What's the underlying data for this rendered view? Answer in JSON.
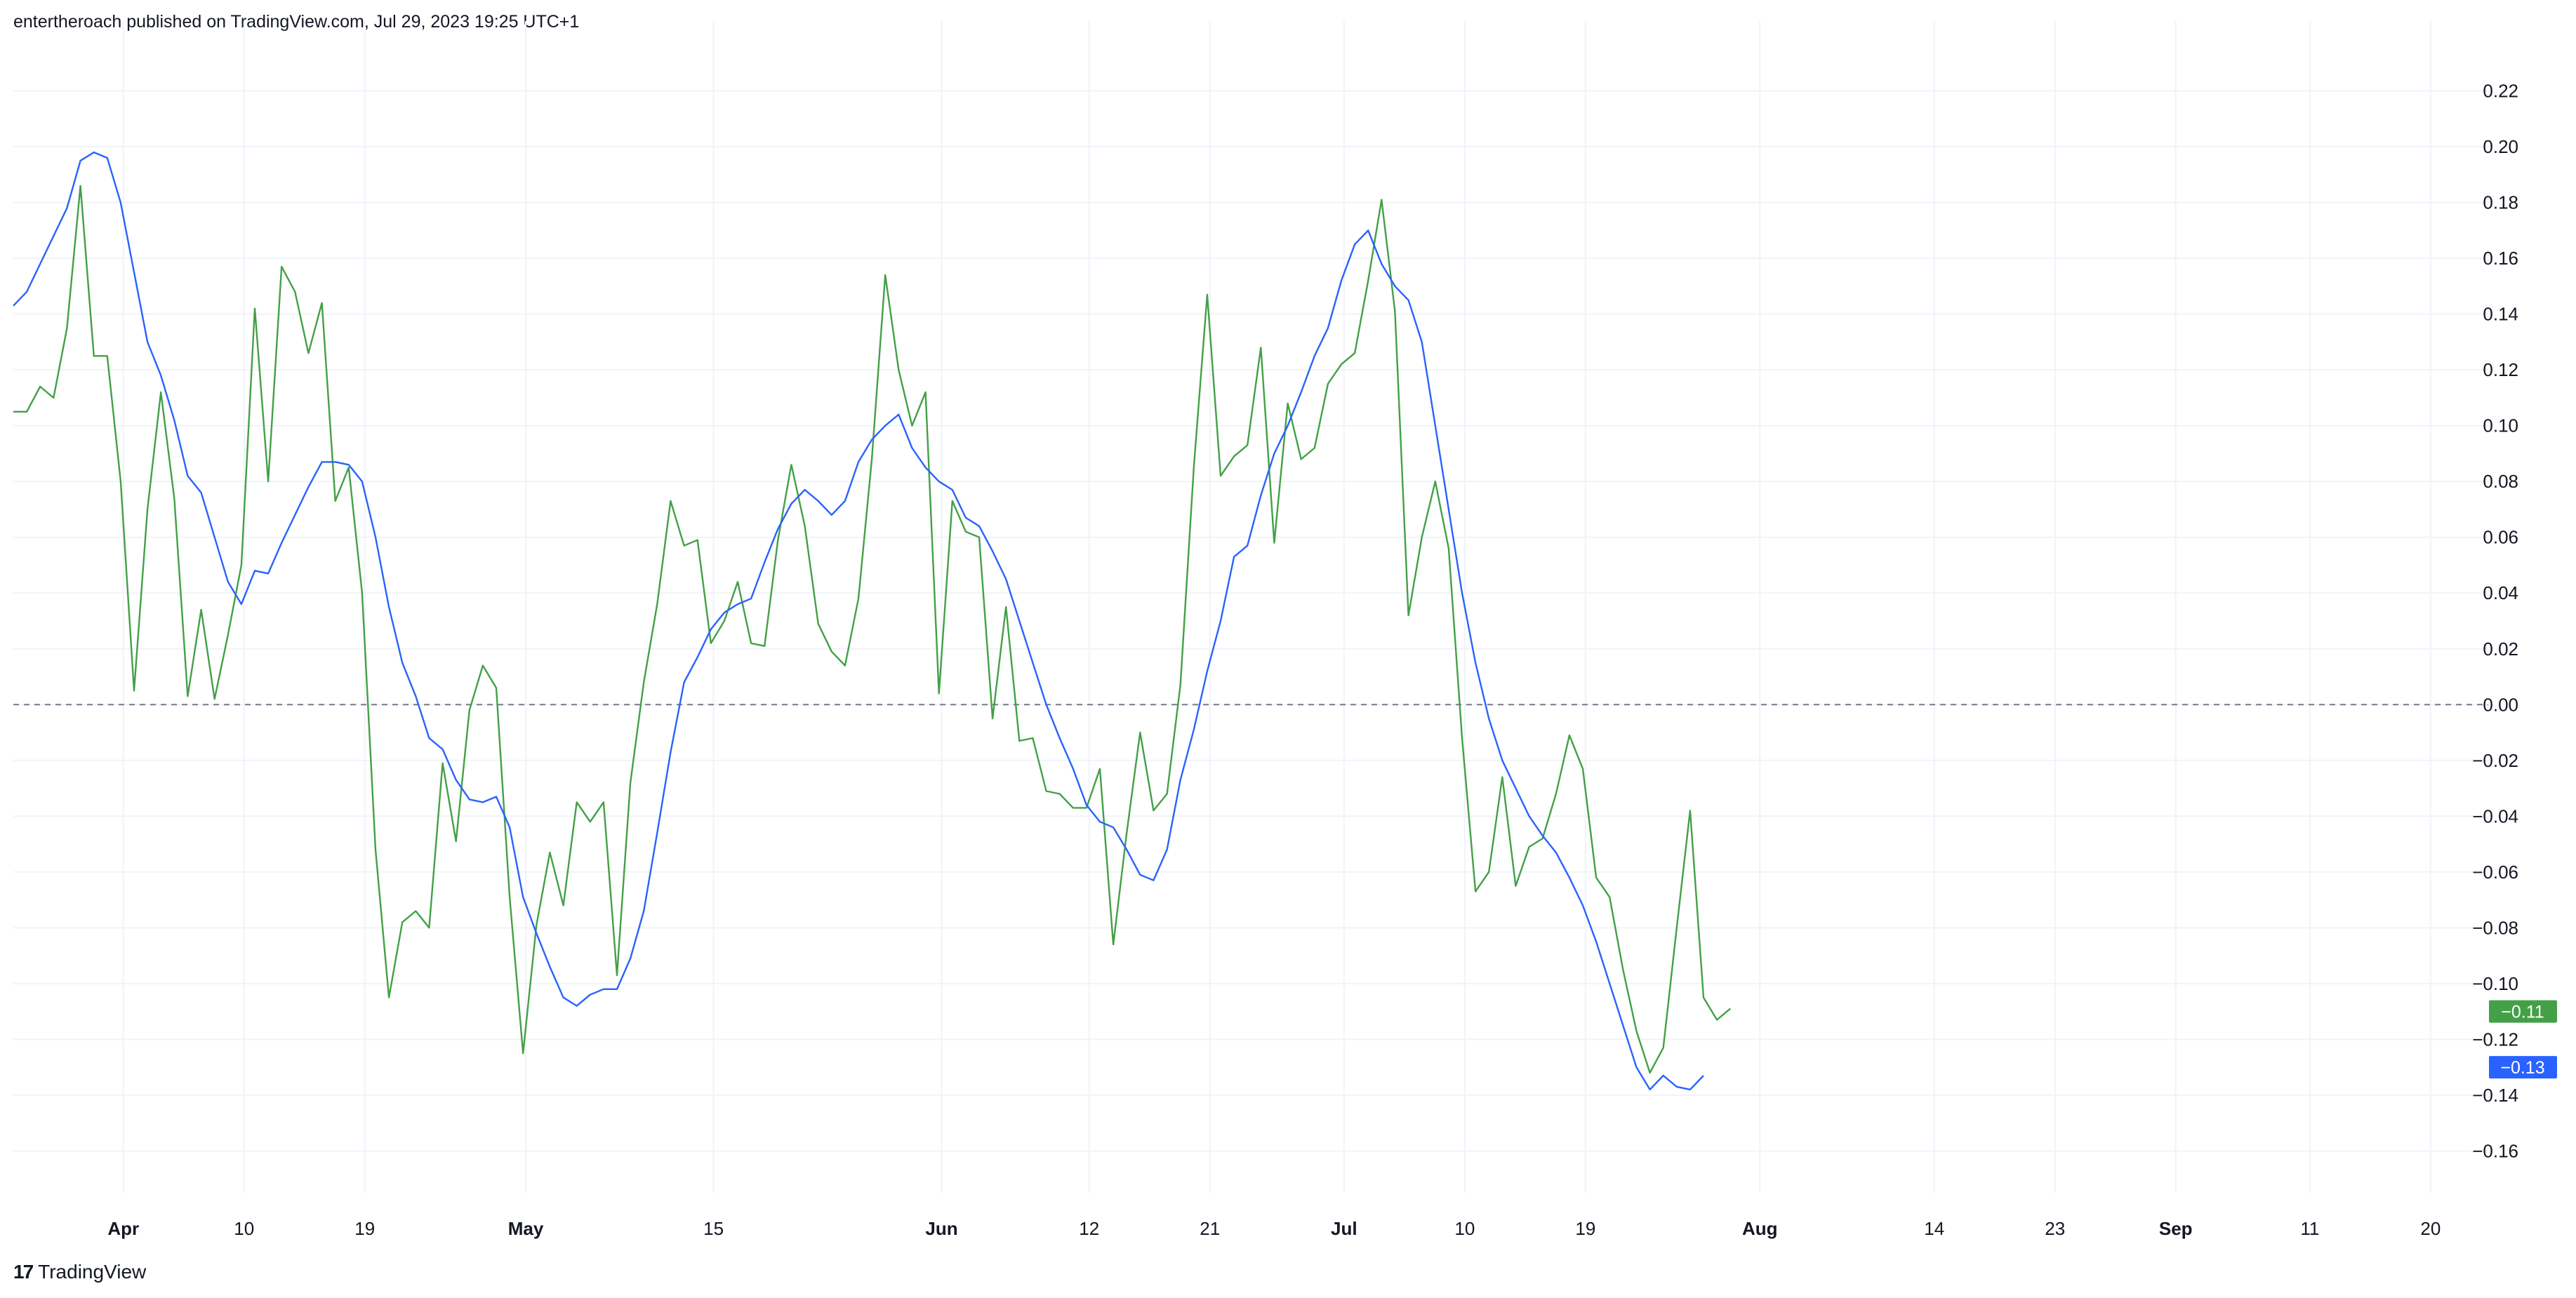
{
  "header": {
    "published": "entertheroach published on TradingView.com, Jul 29, 2023 19:25 UTC+1"
  },
  "footer": {
    "logo_mark": "17",
    "logo_text": "TradingView"
  },
  "colors": {
    "green": "#43a047",
    "blue": "#2962ff",
    "grid": "#f0f3fa",
    "zero": "#787b86"
  },
  "chart_data": {
    "type": "line",
    "y_ticks": [
      "0.22",
      "0.20",
      "0.18",
      "0.16",
      "0.14",
      "0.12",
      "0.10",
      "0.08",
      "0.06",
      "0.04",
      "0.02",
      "0.00",
      "−0.02",
      "−0.04",
      "−0.06",
      "−0.08",
      "−0.10",
      "−0.12",
      "−0.14",
      "−0.16"
    ],
    "ylim": [
      -0.175,
      0.235
    ],
    "x_labels": [
      {
        "label": "Apr",
        "bold": true,
        "x": 8.2
      },
      {
        "label": "10",
        "bold": false,
        "x": 17.2
      },
      {
        "label": "19",
        "bold": false,
        "x": 26.2
      },
      {
        "label": "May",
        "bold": true,
        "x": 38.2
      },
      {
        "label": "15",
        "bold": false,
        "x": 52.2
      },
      {
        "label": "Jun",
        "bold": true,
        "x": 69.2
      },
      {
        "label": "12",
        "bold": false,
        "x": 80.2
      },
      {
        "label": "21",
        "bold": false,
        "x": 89.2
      },
      {
        "label": "Jul",
        "bold": true,
        "x": 99.2
      },
      {
        "label": "10",
        "bold": false,
        "x": 108.2
      },
      {
        "label": "19",
        "bold": false,
        "x": 117.2
      },
      {
        "label": "Aug",
        "bold": true,
        "x": 130.2
      },
      {
        "label": "14",
        "bold": false,
        "x": 143.2
      },
      {
        "label": "23",
        "bold": false,
        "x": 152.2
      },
      {
        "label": "Sep",
        "bold": true,
        "x": 161.2
      },
      {
        "label": "11",
        "bold": false,
        "x": 171.2
      },
      {
        "label": "20",
        "bold": false,
        "x": 180.2
      }
    ],
    "xlim": [
      0,
      184.5
    ],
    "series": [
      {
        "color": "#43a047",
        "last_label": "−0.11",
        "values": [
          0.105,
          0.105,
          0.114,
          0.11,
          0.135,
          0.186,
          0.125,
          0.125,
          0.08,
          0.005,
          0.07,
          0.112,
          0.074,
          0.003,
          0.034,
          0.002,
          0.025,
          0.05,
          0.142,
          0.08,
          0.157,
          0.148,
          0.126,
          0.144,
          0.073,
          0.085,
          0.04,
          -0.052,
          -0.105,
          -0.078,
          -0.074,
          -0.08,
          -0.021,
          -0.049,
          -0.002,
          0.014,
          0.006,
          -0.069,
          -0.125,
          -0.079,
          -0.053,
          -0.072,
          -0.035,
          -0.042,
          -0.035,
          -0.097,
          -0.028,
          0.008,
          0.036,
          0.073,
          0.057,
          0.059,
          0.022,
          0.03,
          0.044,
          0.022,
          0.021,
          0.059,
          0.086,
          0.064,
          0.029,
          0.019,
          0.014,
          0.038,
          0.088,
          0.154,
          0.12,
          0.1,
          0.112,
          0.004,
          0.073,
          0.062,
          0.06,
          -0.005,
          0.035,
          -0.013,
          -0.012,
          -0.031,
          -0.032,
          -0.037,
          -0.037,
          -0.023,
          -0.086,
          -0.046,
          -0.01,
          -0.038,
          -0.032,
          0.007,
          0.085,
          0.147,
          0.082,
          0.089,
          0.093,
          0.128,
          0.058,
          0.108,
          0.088,
          0.092,
          0.115,
          0.122,
          0.126,
          0.152,
          0.181,
          0.141,
          0.032,
          0.06,
          0.08,
          0.056,
          -0.012,
          -0.067,
          -0.06,
          -0.026,
          -0.065,
          -0.051,
          -0.048,
          -0.032,
          -0.011,
          -0.023,
          -0.062,
          -0.069,
          -0.095,
          -0.117,
          -0.132,
          -0.123,
          -0.08,
          -0.038,
          -0.105,
          -0.113,
          -0.109
        ]
      },
      {
        "color": "#2962ff",
        "last_label": "−0.13",
        "values": [
          0.143,
          0.148,
          0.158,
          0.168,
          0.178,
          0.195,
          0.198,
          0.196,
          0.18,
          0.155,
          0.13,
          0.118,
          0.102,
          0.082,
          0.076,
          0.06,
          0.044,
          0.036,
          0.048,
          0.047,
          0.058,
          0.068,
          0.078,
          0.087,
          0.087,
          0.086,
          0.08,
          0.06,
          0.035,
          0.015,
          0.003,
          -0.012,
          -0.016,
          -0.027,
          -0.034,
          -0.035,
          -0.033,
          -0.044,
          -0.069,
          -0.082,
          -0.094,
          -0.105,
          -0.108,
          -0.104,
          -0.102,
          -0.102,
          -0.091,
          -0.074,
          -0.046,
          -0.017,
          0.008,
          0.017,
          0.027,
          0.033,
          0.036,
          0.038,
          0.051,
          0.063,
          0.072,
          0.077,
          0.073,
          0.068,
          0.073,
          0.087,
          0.095,
          0.1,
          0.104,
          0.092,
          0.085,
          0.08,
          0.077,
          0.067,
          0.064,
          0.055,
          0.045,
          0.03,
          0.015,
          0.0,
          -0.012,
          -0.023,
          -0.036,
          -0.042,
          -0.044,
          -0.052,
          -0.061,
          -0.063,
          -0.052,
          -0.027,
          -0.009,
          0.012,
          0.03,
          0.053,
          0.057,
          0.075,
          0.09,
          0.1,
          0.112,
          0.125,
          0.135,
          0.152,
          0.165,
          0.17,
          0.158,
          0.15,
          0.145,
          0.13,
          0.1,
          0.07,
          0.04,
          0.015,
          -0.005,
          -0.02,
          -0.03,
          -0.04,
          -0.047,
          -0.053,
          -0.062,
          -0.072,
          -0.085,
          -0.1,
          -0.115,
          -0.13,
          -0.138,
          -0.133,
          -0.137,
          -0.138,
          -0.133
        ]
      }
    ]
  }
}
